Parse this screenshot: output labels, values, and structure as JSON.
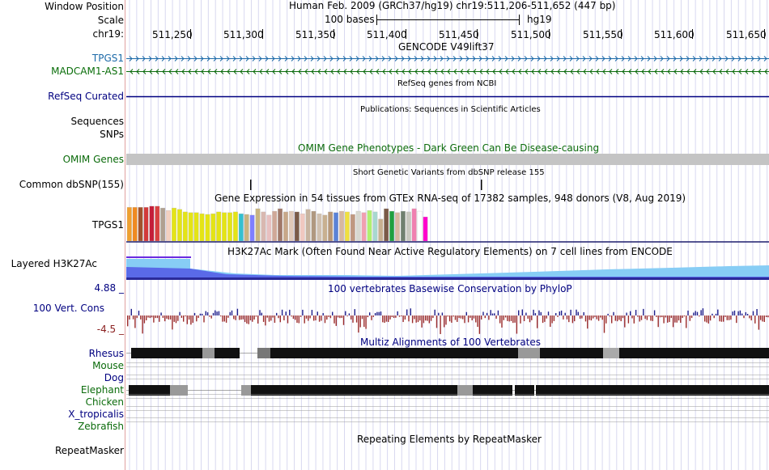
{
  "header": {
    "window_position_label": "Window Position",
    "scale_label": "Scale",
    "chrom_label": "chr19:",
    "position_title": "Human Feb. 2009 (GRCh37/hg19)   chr19:511,206-511,652 (447 bp)",
    "scale_text": "100 bases",
    "assembly": "hg19",
    "ruler_ticks": [
      "511,250",
      "511,300",
      "511,350",
      "511,400",
      "511,450",
      "511,500",
      "511,550",
      "511,600",
      "511,650"
    ]
  },
  "tracks": {
    "gencode": {
      "title": "GENCODE V49lift37",
      "genes": [
        "TPGS1",
        "MADCAM1-AS1"
      ],
      "colors": [
        "#1c6aa8",
        "#0a6e0a"
      ]
    },
    "refseq": {
      "title": "RefSeq genes from NCBI",
      "label": "RefSeq Curated"
    },
    "publications": {
      "title": "Publications: Sequences in Scientific Articles",
      "labels": [
        "Sequences",
        "SNPs"
      ]
    },
    "omim": {
      "title": "OMIM Gene Phenotypes - Dark Green Can Be Disease-causing",
      "label": "OMIM Genes"
    },
    "dbsnp": {
      "title": "Short Genetic Variants from dbSNP release 155",
      "label": "Common dbSNP(155)"
    },
    "gtex": {
      "title": "Gene Expression in 54 tissues from GTEx RNA-seq of 17382 samples, 948 donors (V8, Aug 2019)",
      "label": "TPGS1",
      "values": [
        0.95,
        0.95,
        0.95,
        0.95,
        0.98,
        0.98,
        0.93,
        0.86,
        0.93,
        0.89,
        0.82,
        0.8,
        0.8,
        0.77,
        0.75,
        0.77,
        0.82,
        0.8,
        0.8,
        0.82,
        0.77,
        0.75,
        0.73,
        0.91,
        0.82,
        0.73,
        0.84,
        0.91,
        0.82,
        0.84,
        0.82,
        0.77,
        0.89,
        0.84,
        0.77,
        0.73,
        0.82,
        0.8,
        0.84,
        0.82,
        0.75,
        0.84,
        0.8,
        0.86,
        0.82,
        0.62,
        0.91,
        0.84,
        0.8,
        0.84,
        0.82,
        0.91,
        0.84,
        0.68
      ],
      "colors": [
        "#f0a030",
        "#f08a20",
        "#a0522d",
        "#d23a3a",
        "#c41e3a",
        "#d84040",
        "#b0a090",
        "#f3d0c0",
        "#e4e416",
        "#e4e416",
        "#e4e416",
        "#e4e416",
        "#e4e416",
        "#e4e416",
        "#e4e416",
        "#e4e416",
        "#e4e416",
        "#e4e416",
        "#e4e416",
        "#e4e416",
        "#33c0d0",
        "#c8b480",
        "#7f7fff",
        "#c8b480",
        "#d9b8b0",
        "#e8c0c0",
        "#d0a898",
        "#a07868",
        "#c8a888",
        "#e0c8b8",
        "#7a5a48",
        "#f0c8c0",
        "#c8b4a0",
        "#b09880",
        "#d0c0b0",
        "#c8b090",
        "#b89878",
        "#5a82d8",
        "#d8b8a0",
        "#f0e040",
        "#c09880",
        "#d8d8d0",
        "#f0a0b0",
        "#b0f070",
        "#a8d8d0",
        "#c8b090",
        "#7a5a48",
        "#20a040",
        "#d8b8a0",
        "#708070",
        "#c8c8c0",
        "#f080b0",
        "#ffffff",
        "#ff00cc"
      ]
    },
    "h3k27ac": {
      "title": "H3K27Ac Mark (Often Found Near Active Regulatory Elements) on 7 cell lines from ENCODE",
      "label": "Layered H3K27Ac"
    },
    "phylop": {
      "title": "100 vertebrates Basewise Conservation by PhyloP",
      "label": "100 Vert. Cons",
      "max": "4.88 _",
      "min": "-4.5 _"
    },
    "multiz": {
      "title": "Multiz Alignments of 100 Vertebrates",
      "species": [
        "Rhesus",
        "Mouse",
        "Dog",
        "Elephant",
        "Chicken",
        "X_tropicalis",
        "Zebrafish"
      ]
    },
    "repeatmasker": {
      "title": "Repeating Elements by RepeatMasker",
      "label": "RepeatMasker"
    }
  },
  "colors": {
    "navy": "#000080",
    "green": "#0b6b0b",
    "gencode_blue": "#1c6aa8",
    "phylop_pos": "#1e1e8c",
    "phylop_neg": "#9b2b2b",
    "grid": "#d8d8f0",
    "separator": "#e0a0a0"
  }
}
